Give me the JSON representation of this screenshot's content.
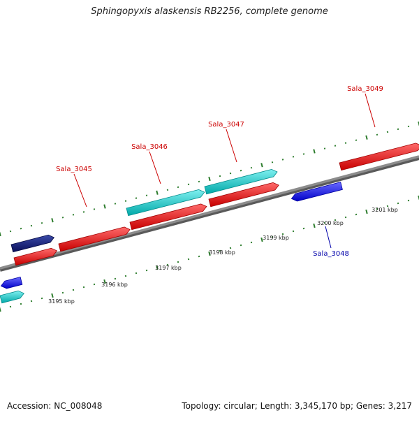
{
  "title": "Sphingopyxis alaskensis RB2256, complete genome",
  "footer": {
    "accession": "Accession: NC_008048",
    "topology": "Topology: circular; Length: 3,345,170 bp; Genes: 3,217"
  },
  "colors": {
    "backbone": "#8c8c8c",
    "tick": "#2e7d2e",
    "forward_cds": "#ff1a1a",
    "forward_cds_alt": "#00d6d6",
    "reverse_cds": "#1a1aff",
    "reverse_cds_dark": "#0f1f88",
    "label_forward": "#cc0000",
    "label_reverse": "#0000aa"
  },
  "scale_labels": [
    "3195 kbp",
    "3196 kbp",
    "3197 kbp",
    "3198 kbp",
    "3199 kbp",
    "3200 kbp",
    "3201 kbp"
  ],
  "genes": [
    {
      "name": "Sala_3045",
      "strand": "forward"
    },
    {
      "name": "Sala_3046",
      "strand": "forward"
    },
    {
      "name": "Sala_3047",
      "strand": "forward"
    },
    {
      "name": "Sala_3048",
      "strand": "reverse"
    },
    {
      "name": "Sala_3049",
      "strand": "forward"
    }
  ]
}
